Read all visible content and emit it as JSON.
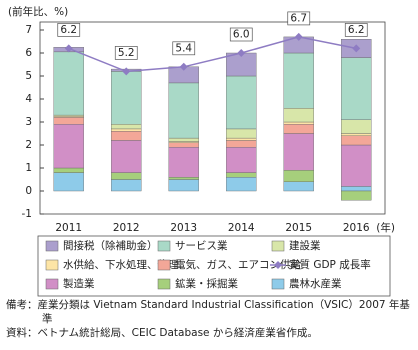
{
  "chart_data": {
    "type": "bar",
    "stacked": true,
    "ylabel": "(前年比、%)",
    "xlabel": "(年)",
    "categories": [
      "2011",
      "2012",
      "2013",
      "2014",
      "2015",
      "2016"
    ],
    "ylim": [
      -1,
      7
    ],
    "yticks": [
      -1,
      0,
      1,
      2,
      3,
      4,
      5,
      6,
      7
    ],
    "grid": false,
    "series": [
      {
        "name": "間接税（除補助金）",
        "color": "#ab9fcd",
        "values": [
          0.2,
          0.1,
          0.7,
          1.0,
          0.7,
          0.8
        ]
      },
      {
        "name": "サービス業",
        "color": "#a9d9c7",
        "values": [
          2.75,
          2.3,
          2.4,
          2.3,
          2.4,
          2.7
        ]
      },
      {
        "name": "建設業",
        "color": "#d8e6a9",
        "values": [
          0.05,
          0.2,
          0.15,
          0.4,
          0.6,
          0.6
        ]
      },
      {
        "name": "水供給、下水処理、修理",
        "color": "#fde5a6",
        "values": [
          0.05,
          0.1,
          0.05,
          0.1,
          0.1,
          0.1
        ]
      },
      {
        "name": "電気、ガス、エアコン供給",
        "color": "#f3a798",
        "values": [
          0.3,
          0.4,
          0.2,
          0.3,
          0.4,
          0.4
        ]
      },
      {
        "name": "実質 GDP 成長率",
        "type": "line",
        "color": "#8e7cc3",
        "values": [
          6.2,
          5.2,
          5.4,
          6.0,
          6.7,
          6.2
        ],
        "value_labels": [
          "6.2",
          "5.2",
          "5.4",
          "6.0",
          "6.7",
          "6.2"
        ]
      },
      {
        "name": "製造業",
        "color": "#d18fc6",
        "values": [
          1.9,
          1.4,
          1.3,
          1.1,
          1.6,
          1.8
        ]
      },
      {
        "name": "鉱業・採掘業",
        "color": "#a6cf7c",
        "values": [
          0.2,
          0.3,
          0.1,
          0.2,
          0.5,
          -0.4
        ]
      },
      {
        "name": "農林水産業",
        "color": "#8ecbe9",
        "values": [
          0.8,
          0.5,
          0.5,
          0.6,
          0.4,
          0.2
        ]
      }
    ],
    "notes": [
      "備考：産業分類は Vietnam Standard Industrial Classification（VSIC）2007 年基準",
      "資料：ベトナム統計総局、CEIC Database から経済産業省作成。"
    ]
  }
}
